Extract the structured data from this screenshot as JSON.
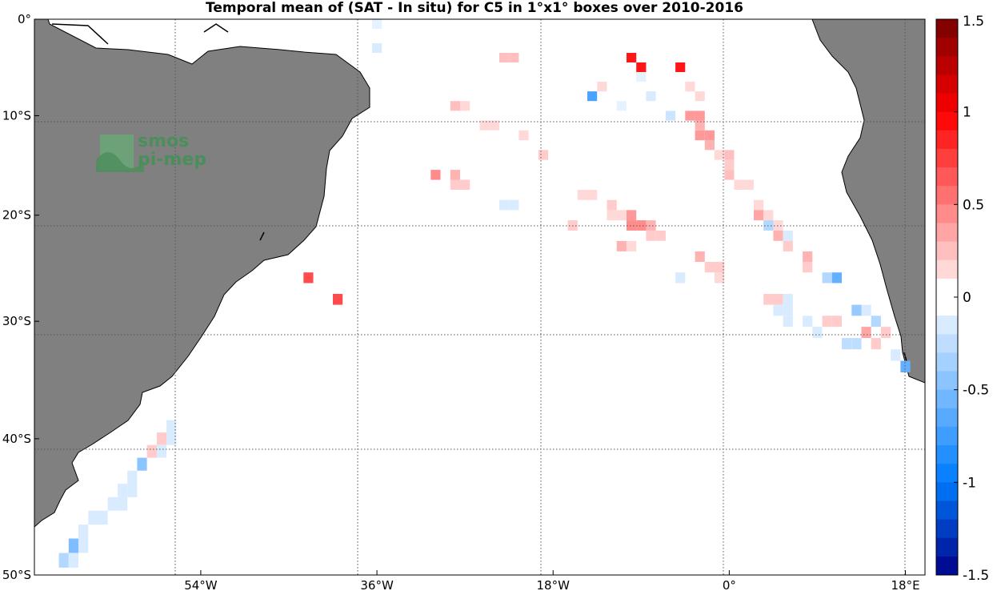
{
  "title": "Temporal mean of (SAT - In situ) for C5 in 1°x1° boxes over 2010-2016",
  "logo": {
    "line1": "smos",
    "line2": "pi-mep"
  },
  "map": {
    "lon_range": [
      -71,
      20
    ],
    "lat_range": [
      -50,
      0
    ],
    "lon_ticks": [
      {
        "lon": -54,
        "label": "54°W"
      },
      {
        "lon": -36,
        "label": "36°W"
      },
      {
        "lon": -18,
        "label": "18°W"
      },
      {
        "lon": 0,
        "label": "0°"
      },
      {
        "lon": 18,
        "label": "18°E"
      }
    ],
    "lat_ticks": [
      {
        "lat": 0,
        "label": "0°"
      },
      {
        "lat": -10,
        "label": "10°S"
      },
      {
        "lat": -20,
        "label": "20°S"
      },
      {
        "lat": -30,
        "label": "30°S"
      },
      {
        "lat": -40,
        "label": "40°S"
      },
      {
        "lat": -50,
        "label": "50°S"
      }
    ],
    "land_color": "#808080",
    "grid": true
  },
  "colorbar": {
    "range": [
      -1.5,
      1.5
    ],
    "step": 0.1,
    "ticks": [
      {
        "value": 1.5,
        "label": "1.5"
      },
      {
        "value": 1.0,
        "label": "1"
      },
      {
        "value": 0.5,
        "label": "0.5"
      },
      {
        "value": 0.0,
        "label": "0"
      },
      {
        "value": -0.5,
        "label": "-0.5"
      },
      {
        "value": -1.0,
        "label": "-1"
      },
      {
        "value": -1.5,
        "label": "-1.5"
      }
    ]
  },
  "chart_data": {
    "type": "heatmap",
    "title": "Temporal mean of (SAT - In situ) for C5 in 1°x1° boxes over 2010-2016",
    "xlabel": "",
    "ylabel": "",
    "colorbar_range": [
      -1.5,
      1.5
    ],
    "cells": [
      {
        "lon": -36,
        "lat": -0.5,
        "v": -0.1
      },
      {
        "lon": -36,
        "lat": -3,
        "v": -0.15
      },
      {
        "lon": -23,
        "lat": -4,
        "v": 0.25
      },
      {
        "lon": -22,
        "lat": -4,
        "v": 0.25
      },
      {
        "lon": -10,
        "lat": -4,
        "v": 0.9
      },
      {
        "lon": -9,
        "lat": -5,
        "v": 0.9
      },
      {
        "lon": -5,
        "lat": -5,
        "v": 0.9
      },
      {
        "lon": -9,
        "lat": -6,
        "v": -0.1
      },
      {
        "lon": -13,
        "lat": -7,
        "v": 0.15
      },
      {
        "lon": -4,
        "lat": -7,
        "v": 0.15
      },
      {
        "lon": -14,
        "lat": -8,
        "v": -0.7
      },
      {
        "lon": -8,
        "lat": -8,
        "v": -0.15
      },
      {
        "lon": -3,
        "lat": -8,
        "v": 0.15
      },
      {
        "lon": -28,
        "lat": -9,
        "v": 0.25
      },
      {
        "lon": -27,
        "lat": -9,
        "v": 0.15
      },
      {
        "lon": -11,
        "lat": -9,
        "v": -0.1
      },
      {
        "lon": -6,
        "lat": -10,
        "v": -0.2
      },
      {
        "lon": -4,
        "lat": -10,
        "v": 0.4
      },
      {
        "lon": -3,
        "lat": -10,
        "v": 0.4
      },
      {
        "lon": -25,
        "lat": -11,
        "v": 0.15
      },
      {
        "lon": -24,
        "lat": -11,
        "v": 0.15
      },
      {
        "lon": -3,
        "lat": -11,
        "v": 0.3
      },
      {
        "lon": -21,
        "lat": -12,
        "v": 0.15
      },
      {
        "lon": -3,
        "lat": -12,
        "v": 0.4
      },
      {
        "lon": -2,
        "lat": -12,
        "v": 0.4
      },
      {
        "lon": -2,
        "lat": -13,
        "v": 0.3
      },
      {
        "lon": -19,
        "lat": -14,
        "v": 0.2
      },
      {
        "lon": -1,
        "lat": -14,
        "v": 0.15
      },
      {
        "lon": 0,
        "lat": -14,
        "v": 0.25
      },
      {
        "lon": 0,
        "lat": -15,
        "v": 0.2
      },
      {
        "lon": -30,
        "lat": -16,
        "v": 0.45
      },
      {
        "lon": -28,
        "lat": -16,
        "v": 0.3
      },
      {
        "lon": 0,
        "lat": -16,
        "v": 0.25
      },
      {
        "lon": -28,
        "lat": -17,
        "v": 0.2
      },
      {
        "lon": -27,
        "lat": -17,
        "v": 0.2
      },
      {
        "lon": 1,
        "lat": -17,
        "v": 0.15
      },
      {
        "lon": 2,
        "lat": -17,
        "v": 0.15
      },
      {
        "lon": -15,
        "lat": -18,
        "v": 0.15
      },
      {
        "lon": -14,
        "lat": -18,
        "v": 0.15
      },
      {
        "lon": -23,
        "lat": -19,
        "v": -0.15
      },
      {
        "lon": -22,
        "lat": -19,
        "v": -0.15
      },
      {
        "lon": -12,
        "lat": -19,
        "v": 0.2
      },
      {
        "lon": 3,
        "lat": -19,
        "v": 0.15
      },
      {
        "lon": -12,
        "lat": -20,
        "v": 0.15
      },
      {
        "lon": -11,
        "lat": -20,
        "v": 0.15
      },
      {
        "lon": -10,
        "lat": -20,
        "v": 0.4
      },
      {
        "lon": 3,
        "lat": -20,
        "v": 0.35
      },
      {
        "lon": 4,
        "lat": -20,
        "v": 0.15
      },
      {
        "lon": -16,
        "lat": -21,
        "v": 0.2
      },
      {
        "lon": -10,
        "lat": -21,
        "v": 0.45
      },
      {
        "lon": -9,
        "lat": -21,
        "v": 0.45
      },
      {
        "lon": -8,
        "lat": -21,
        "v": 0.3
      },
      {
        "lon": 4,
        "lat": -21,
        "v": -0.3
      },
      {
        "lon": 5,
        "lat": -21,
        "v": 0.15
      },
      {
        "lon": -8,
        "lat": -22,
        "v": 0.2
      },
      {
        "lon": -7,
        "lat": -22,
        "v": 0.2
      },
      {
        "lon": 5,
        "lat": -22,
        "v": 0.3
      },
      {
        "lon": 6,
        "lat": -22,
        "v": -0.15
      },
      {
        "lon": -11,
        "lat": -23,
        "v": 0.3
      },
      {
        "lon": -10,
        "lat": -23,
        "v": 0.15
      },
      {
        "lon": 6,
        "lat": -23,
        "v": 0.2
      },
      {
        "lon": -3,
        "lat": -24,
        "v": 0.3
      },
      {
        "lon": 8,
        "lat": -24,
        "v": 0.3
      },
      {
        "lon": -2,
        "lat": -25,
        "v": 0.2
      },
      {
        "lon": -1,
        "lat": -25,
        "v": 0.2
      },
      {
        "lon": 8,
        "lat": -25,
        "v": 0.2
      },
      {
        "lon": -43,
        "lat": -26,
        "v": 0.7
      },
      {
        "lon": -5,
        "lat": -26,
        "v": -0.15
      },
      {
        "lon": -1,
        "lat": -26,
        "v": 0.15
      },
      {
        "lon": 10,
        "lat": -26,
        "v": -0.3
      },
      {
        "lon": 11,
        "lat": -26,
        "v": -0.6
      },
      {
        "lon": -40,
        "lat": -28,
        "v": 0.7
      },
      {
        "lon": 4,
        "lat": -28,
        "v": 0.2
      },
      {
        "lon": 5,
        "lat": -28,
        "v": 0.2
      },
      {
        "lon": 6,
        "lat": -28,
        "v": -0.15
      },
      {
        "lon": 5,
        "lat": -29,
        "v": -0.15
      },
      {
        "lon": 6,
        "lat": -29,
        "v": -0.15
      },
      {
        "lon": 13,
        "lat": -29,
        "v": -0.4
      },
      {
        "lon": 14,
        "lat": -29,
        "v": -0.15
      },
      {
        "lon": 6,
        "lat": -30,
        "v": -0.15
      },
      {
        "lon": 8,
        "lat": -30,
        "v": -0.15
      },
      {
        "lon": 10,
        "lat": -30,
        "v": 0.2
      },
      {
        "lon": 11,
        "lat": -30,
        "v": 0.2
      },
      {
        "lon": 15,
        "lat": -30,
        "v": -0.3
      },
      {
        "lon": 9,
        "lat": -31,
        "v": -0.15
      },
      {
        "lon": 14,
        "lat": -31,
        "v": 0.35
      },
      {
        "lon": 16,
        "lat": -31,
        "v": 0.2
      },
      {
        "lon": 12,
        "lat": -32,
        "v": -0.25
      },
      {
        "lon": 13,
        "lat": -32,
        "v": -0.25
      },
      {
        "lon": 15,
        "lat": -32,
        "v": 0.2
      },
      {
        "lon": 17,
        "lat": -33,
        "v": -0.15
      },
      {
        "lon": 18,
        "lat": -34,
        "v": -0.6
      },
      {
        "lon": -57,
        "lat": -39,
        "v": -0.15
      },
      {
        "lon": -57,
        "lat": -40,
        "v": -0.15
      },
      {
        "lon": -58,
        "lat": -40,
        "v": 0.2
      },
      {
        "lon": -59,
        "lat": -41,
        "v": 0.2
      },
      {
        "lon": -58,
        "lat": -41,
        "v": -0.15
      },
      {
        "lon": -60,
        "lat": -42,
        "v": -0.45
      },
      {
        "lon": -61,
        "lat": -43,
        "v": -0.15
      },
      {
        "lon": -61,
        "lat": -44,
        "v": -0.15
      },
      {
        "lon": -62,
        "lat": -44,
        "v": -0.15
      },
      {
        "lon": -62,
        "lat": -45,
        "v": -0.15
      },
      {
        "lon": -63,
        "lat": -45,
        "v": -0.15
      },
      {
        "lon": -64,
        "lat": -46,
        "v": -0.15
      },
      {
        "lon": -65,
        "lat": -46,
        "v": -0.15
      },
      {
        "lon": -66,
        "lat": -47,
        "v": -0.15
      },
      {
        "lon": -67,
        "lat": -48,
        "v": -0.5
      },
      {
        "lon": -66,
        "lat": -48,
        "v": -0.15
      },
      {
        "lon": -68,
        "lat": -49,
        "v": -0.3
      },
      {
        "lon": -67,
        "lat": -49,
        "v": -0.15
      }
    ]
  }
}
